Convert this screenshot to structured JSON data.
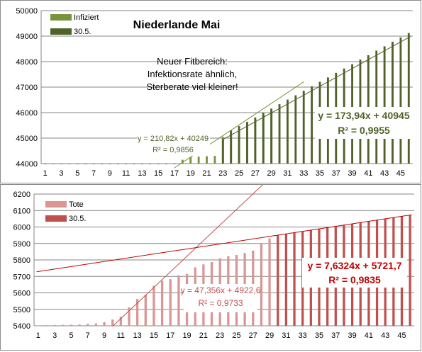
{
  "chart_data": [
    {
      "type": "bar",
      "title": "Niederlande Mai",
      "ylim": [
        44000,
        50000
      ],
      "yticks": [
        44000,
        45000,
        46000,
        47000,
        48000,
        49000,
        50000
      ],
      "xticks": [
        1,
        3,
        5,
        7,
        9,
        11,
        13,
        15,
        17,
        19,
        21,
        23,
        25,
        27,
        29,
        31,
        33,
        35,
        37,
        39,
        41,
        43,
        45
      ],
      "x_range": [
        1,
        46
      ],
      "grid": "horizontal",
      "legend_position": "top-left",
      "annotation": {
        "lines": [
          "Neuer Fitbereich:",
          "Infektionsrate ähnlich,",
          "Sterberate viel kleiner!"
        ]
      },
      "series": [
        {
          "name": "Infiziert",
          "color": "#77933c",
          "x": [
            1,
            2,
            3,
            4,
            5,
            6,
            7,
            8,
            9,
            10,
            11,
            12,
            13,
            14,
            15,
            16,
            17,
            18,
            19,
            20,
            21,
            22,
            23,
            24,
            25,
            26,
            27,
            28,
            29
          ],
          "values": [
            44000,
            44000,
            44000,
            44000,
            44000,
            44000,
            44000,
            44000,
            44000,
            44000,
            44000,
            44000,
            44000,
            44000,
            44000,
            44000,
            44000,
            44150,
            44250,
            44270,
            44290,
            44300,
            45050,
            45200,
            45400,
            45550,
            45720,
            45920,
            46110
          ]
        },
        {
          "name": "30.5.",
          "color": "#4f6228",
          "x": [
            23,
            24,
            25,
            26,
            27,
            28,
            29,
            30,
            31,
            32,
            33,
            34,
            35,
            36,
            37,
            38,
            39,
            40,
            41,
            42,
            43,
            44,
            45,
            46
          ],
          "values": [
            44950,
            45300,
            45470,
            45640,
            45810,
            45990,
            46160,
            46330,
            46510,
            46680,
            46860,
            47030,
            47210,
            47380,
            47560,
            47730,
            47900,
            48080,
            48250,
            48430,
            48600,
            48780,
            48950,
            49120
          ]
        }
      ],
      "trendlines": [
        {
          "label": [
            "y = 210,82x + 40249",
            "R² = 0,9856"
          ],
          "color": "#77933c",
          "slope": 210.82,
          "intercept": 40249,
          "x_from": 17,
          "x_to": 33
        },
        {
          "label": [
            "y = 173,94x + 40945",
            "R² = 0,9955"
          ],
          "color": "#4f6228",
          "slope": 173.94,
          "intercept": 40945,
          "x_from": 23,
          "x_to": 46.2
        }
      ]
    },
    {
      "type": "bar",
      "ylim": [
        5400,
        6200
      ],
      "yticks": [
        5400,
        5500,
        5600,
        5700,
        5800,
        5900,
        6000,
        6100,
        6200
      ],
      "xticks": [
        1,
        3,
        5,
        7,
        9,
        11,
        13,
        15,
        17,
        19,
        21,
        23,
        25,
        27,
        29,
        31,
        33,
        35,
        37,
        39,
        41,
        43,
        45
      ],
      "x_range": [
        1,
        46
      ],
      "grid": "horizontal",
      "legend_position": "top-left",
      "series": [
        {
          "name": "Tote",
          "color": "#d99694",
          "x": [
            1,
            2,
            3,
            4,
            5,
            6,
            7,
            8,
            9,
            10,
            11,
            12,
            13,
            14,
            15,
            16,
            17,
            18,
            19,
            20,
            21,
            22,
            23,
            24,
            25,
            26,
            27,
            28,
            29
          ],
          "values": [
            5403,
            5404,
            5405,
            5406,
            5407,
            5408,
            5412,
            5414,
            5422,
            5438,
            5455,
            5512,
            5563,
            5588,
            5643,
            5673,
            5683,
            5706,
            5715,
            5755,
            5773,
            5787,
            5810,
            5823,
            5830,
            5842,
            5857,
            5903,
            5930
          ]
        },
        {
          "name": "30.5.",
          "color": "#c0504d",
          "x": [
            30,
            31,
            32,
            33,
            34,
            35,
            36,
            37,
            38,
            39,
            40,
            41,
            42,
            43,
            44,
            45,
            46
          ],
          "values": [
            5951,
            5958,
            5966,
            5974,
            5981,
            5989,
            5996,
            6004,
            6011,
            6019,
            6027,
            6034,
            6042,
            6049,
            6057,
            6065,
            6072
          ]
        }
      ],
      "trendlines": [
        {
          "label": [
            "y = 47,356x + 4922,6",
            "R² = 0,9733"
          ],
          "color": "#c0504d",
          "slope": 47.356,
          "intercept": 4922.6,
          "x_from": 10,
          "x_to": 33
        },
        {
          "label": [
            "y = 7,6324x + 5721,7",
            "R² = 0,9835"
          ],
          "color": "#c00000",
          "slope": 7.6324,
          "intercept": 5721.7,
          "x_from": 0.8,
          "x_to": 46.2
        }
      ]
    }
  ]
}
